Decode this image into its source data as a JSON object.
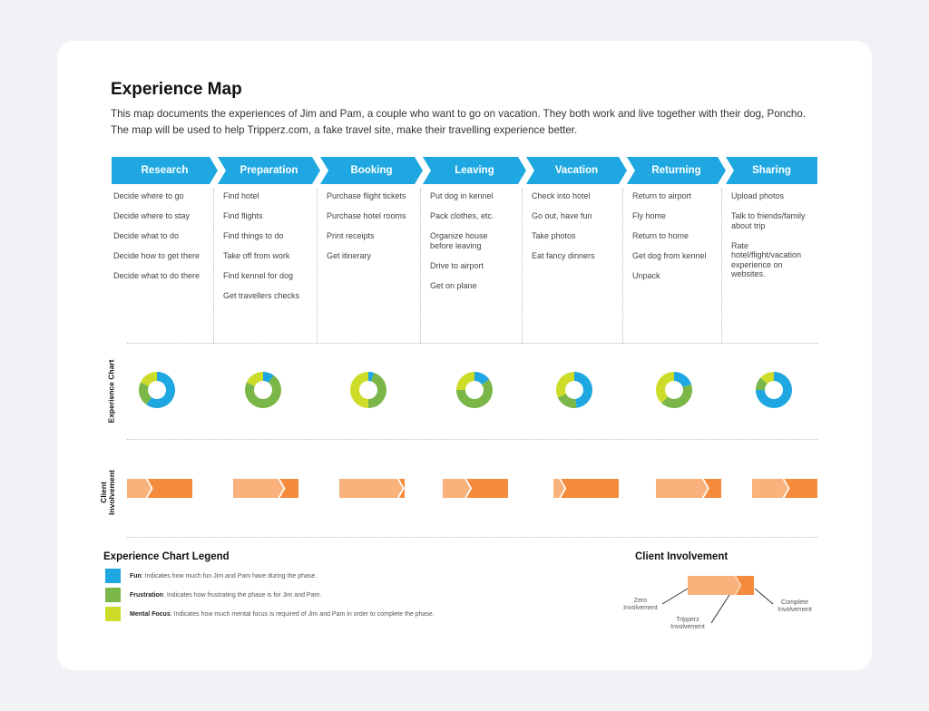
{
  "title": "Experience Map",
  "description": "This map documents the experiences of Jim and Pam, a couple who want to go on vacation. They both work and live together with their dog, Poncho. The map will be used to help Tripperz.com, a fake travel site, make their travelling experience better.",
  "colors": {
    "phase": "#1ea7e1",
    "fun": "#1ea7e1",
    "frustration": "#7ab648",
    "mental_focus": "#cddc29",
    "zero_involvement": "#f9b27b",
    "tripperz_involvement": "#f58b3c"
  },
  "phases": [
    {
      "name": "Research",
      "tasks": [
        "Decide where to go",
        "Decide where to stay",
        "Decide what to do",
        "Decide how to get there",
        "Decide what to do there"
      ],
      "experience": {
        "fun": 0.6,
        "frustration": 0.22,
        "mental_focus": 0.18
      },
      "involvement": {
        "zero": 0.3,
        "tripperz": 0.7
      }
    },
    {
      "name": "Preparation",
      "tasks": [
        "Find hotel",
        "Find flights",
        "Find things to do",
        "Take off from work",
        "Find kennel for dog",
        "Get travellers checks"
      ],
      "experience": {
        "fun": 0.1,
        "frustration": 0.72,
        "mental_focus": 0.18
      },
      "involvement": {
        "zero": 0.7,
        "tripperz": 0.3
      }
    },
    {
      "name": "Booking",
      "tasks": [
        "Purchase flight tickets",
        "Purchase hotel rooms",
        "Print receipts",
        "Get itinerary"
      ],
      "experience": {
        "fun": 0.05,
        "frustration": 0.45,
        "mental_focus": 0.5
      },
      "involvement": {
        "zero": 0.9,
        "tripperz": 0.1
      }
    },
    {
      "name": "Leaving",
      "tasks": [
        "Put dog in kennel",
        "Pack clothes, etc.",
        "Organize house before leaving",
        "Drive to airport",
        "Get on plane"
      ],
      "experience": {
        "fun": 0.15,
        "frustration": 0.6,
        "mental_focus": 0.25
      },
      "involvement": {
        "zero": 0.35,
        "tripperz": 0.65
      }
    },
    {
      "name": "Vacation",
      "tasks": [
        "Check into hotel",
        "Go out, have fun",
        "Take photos",
        "Eat fancy dinners"
      ],
      "experience": {
        "fun": 0.48,
        "frustration": 0.2,
        "mental_focus": 0.32
      },
      "involvement": {
        "zero": 0.1,
        "tripperz": 0.9
      }
    },
    {
      "name": "Returning",
      "tasks": [
        "Return to airport",
        "Fly home",
        "Return to home",
        "Get dog from kennel",
        "Unpack"
      ],
      "experience": {
        "fun": 0.2,
        "frustration": 0.42,
        "mental_focus": 0.38
      },
      "involvement": {
        "zero": 0.72,
        "tripperz": 0.28
      }
    },
    {
      "name": "Sharing",
      "tasks": [
        "Upload photos",
        "Talk to friends/family about trip",
        "Rate hotel/flight/vacation experience on websites."
      ],
      "experience": {
        "fun": 0.75,
        "frustration": 0.12,
        "mental_focus": 0.13
      },
      "involvement": {
        "zero": 0.48,
        "tripperz": 0.52
      }
    }
  ],
  "row_labels": {
    "experience_chart": "Experience Chart",
    "client_involvement": "Client Involvement"
  },
  "legend": {
    "title": "Experience Chart Legend",
    "items": [
      {
        "term": "Fun",
        "text": ": Indicates how much fun Jim and Pam have during the phase."
      },
      {
        "term": "Frustration",
        "text": ": Indicates how frustrating the phase is for Jim and Pam."
      },
      {
        "term": "Mental Focus",
        "text": ": Indicates how much mental focus is required of Jim and Pam in order to complete the phase."
      }
    ]
  },
  "client_involvement_legend": {
    "title": "Client Involvement",
    "zero_label": "Zero Involvement",
    "tripperz_label": "Tripperz Involvement",
    "complete_label": "Complete Involvement"
  }
}
